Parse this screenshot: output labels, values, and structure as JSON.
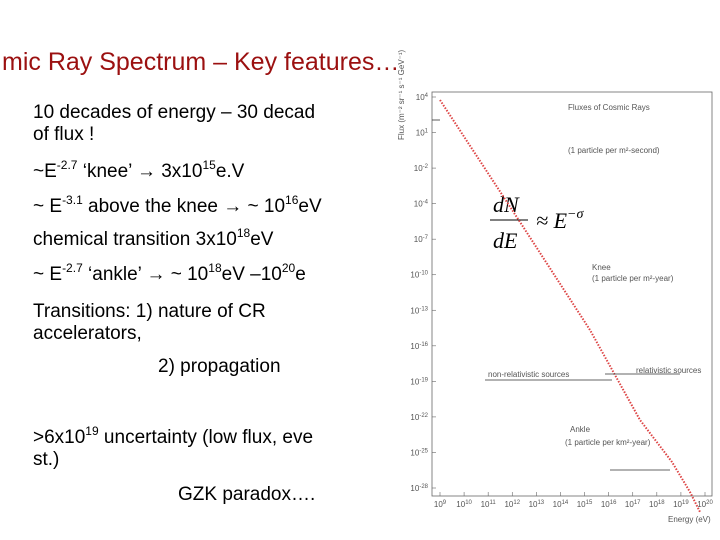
{
  "slide": {
    "title": "mic Ray Spectrum – Key features…",
    "lines": [
      {
        "parts": [
          {
            "t": "10 decades of energy – 30 decad"
          }
        ]
      },
      {
        "parts": [
          {
            "t": "of flux !"
          }
        ]
      },
      {
        "parts": [
          {
            "t": "~E"
          },
          {
            "sup": "-2.7"
          },
          {
            "t": " ‘knee’ → 3x10"
          },
          {
            "sup": "15"
          },
          {
            "t": "e.V"
          }
        ]
      },
      {
        "parts": [
          {
            "t": "~ E"
          },
          {
            "sup": "-3.1"
          },
          {
            "t": " above the knee → ~ 10"
          },
          {
            "sup": "16"
          },
          {
            "t": "eV"
          }
        ]
      },
      {
        "parts": [
          {
            "t": "chemical transition  3x10"
          },
          {
            "sup": "18"
          },
          {
            "t": "eV"
          }
        ]
      },
      {
        "parts": [
          {
            "t": " ~ E"
          },
          {
            "sup": "-2.7"
          },
          {
            "t": " ‘ankle’ → ~ 10"
          },
          {
            "sup": "18"
          },
          {
            "t": "eV –10"
          },
          {
            "sup": "20"
          },
          {
            "t": "e"
          }
        ]
      },
      {
        "parts": [
          {
            "t": "Transitions: 1) nature of CR"
          }
        ]
      },
      {
        "parts": [
          {
            "t": "accelerators,"
          }
        ]
      },
      {
        "parts": [
          {
            "t": "2) propagation"
          }
        ]
      },
      {
        "parts": [
          {
            "t": ">6x10"
          },
          {
            "sup": "19"
          },
          {
            "t": " uncertainty (low flux, eve"
          }
        ]
      },
      {
        "parts": [
          {
            "t": "st.)"
          }
        ]
      },
      {
        "parts": [
          {
            "t": "GZK paradox…."
          }
        ]
      }
    ]
  },
  "figure": {
    "title": "Fluxes of Cosmic Rays",
    "y_label": "Flux (m⁻² sr⁻¹ s⁻¹ GeV⁻¹)",
    "x_label": "Energy (eV)",
    "formula_num": "dN",
    "formula_den": "dE",
    "formula_rhs": "≈ E",
    "formula_exp": "−σ",
    "notes": [
      "(1 particle per m²-second)",
      "Knee",
      "(1 particle per m²-year)",
      "non-relativistic sources",
      "relativistic sources",
      "Ankle",
      "(1 particle per km²-year)"
    ],
    "yticks": [
      {
        "base": "10",
        "exp": "4"
      },
      {
        "base": "10",
        "exp": "1"
      },
      {
        "base": "10",
        "exp": "-2"
      },
      {
        "base": "10",
        "exp": "-4"
      },
      {
        "base": "10",
        "exp": "-7"
      },
      {
        "base": "10",
        "exp": "-10"
      },
      {
        "base": "10",
        "exp": "-13"
      },
      {
        "base": "10",
        "exp": "-16"
      },
      {
        "base": "10",
        "exp": "-19"
      },
      {
        "base": "10",
        "exp": "-22"
      },
      {
        "base": "10",
        "exp": "-25"
      },
      {
        "base": "10",
        "exp": "-28"
      }
    ],
    "xticks": [
      {
        "base": "10",
        "exp": "9"
      },
      {
        "base": "10",
        "exp": "10"
      },
      {
        "base": "10",
        "exp": "11"
      },
      {
        "base": "10",
        "exp": "12"
      },
      {
        "base": "10",
        "exp": "13"
      },
      {
        "base": "10",
        "exp": "14"
      },
      {
        "base": "10",
        "exp": "15"
      },
      {
        "base": "10",
        "exp": "16"
      },
      {
        "base": "10",
        "exp": "17"
      },
      {
        "base": "10",
        "exp": "18"
      },
      {
        "base": "10",
        "exp": "19"
      },
      {
        "base": "10",
        "exp": "20"
      }
    ]
  }
}
